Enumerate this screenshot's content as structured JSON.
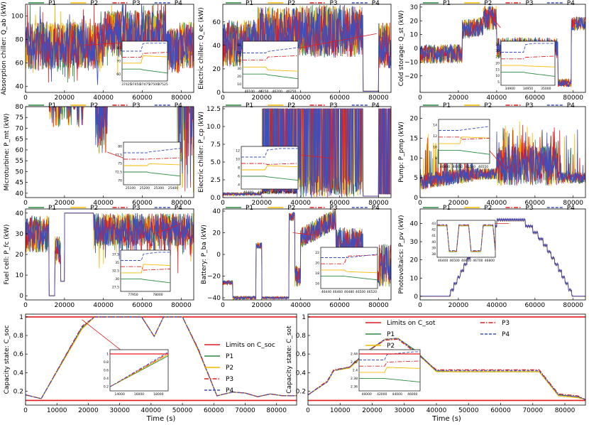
{
  "figure": {
    "colors": {
      "P1": "#2a8a3e",
      "P2": "#f5b800",
      "P3": "#e41a1c",
      "P4": "#3b4fc0",
      "limit": "#e41a1c"
    },
    "legend_labels": [
      "P1",
      "P2",
      "P3",
      "P4"
    ],
    "x_ticks": [
      0,
      20000,
      40000,
      60000,
      80000
    ],
    "x_ticks_wide": [
      0,
      10000,
      20000,
      30000,
      40000,
      50000,
      60000,
      70000,
      80000
    ],
    "xlabel": "Time (s)"
  },
  "chart_data": [
    {
      "id": "qab",
      "type": "line",
      "ylabel": "Absorption chiller: Q_ab (kW)",
      "ylim": [
        35,
        110
      ],
      "yticks": [
        40,
        60,
        80,
        100
      ],
      "series": [
        {
          "name": "P1"
        },
        {
          "name": "P2"
        },
        {
          "name": "P3"
        },
        {
          "name": "P4"
        }
      ],
      "inset": {
        "xticks": [
          "37425",
          "37450",
          "37475",
          "37500",
          "37525"
        ],
        "yticks": [
          60,
          70,
          80
        ]
      }
    },
    {
      "id": "qec",
      "type": "line",
      "ylabel": "Electric chiller: Q_ec (kW)",
      "ylim": [
        0,
        75
      ],
      "yticks": [
        0,
        20,
        40,
        60
      ],
      "series": [
        {
          "name": "P1"
        },
        {
          "name": "P2"
        },
        {
          "name": "P3"
        },
        {
          "name": "P4"
        }
      ],
      "inset": {
        "xticks": [
          "46100",
          "46150",
          "46200",
          "46250"
        ],
        "yticks": [
          10,
          20,
          30,
          40,
          50,
          60
        ]
      }
    },
    {
      "id": "qst",
      "type": "line",
      "ylabel": "Cold storage: Q_st (kW)",
      "ylim": [
        -32,
        32
      ],
      "yticks": [
        -20,
        -10,
        0,
        10,
        20,
        30
      ],
      "series": [
        {
          "name": "P1"
        },
        {
          "name": "P2"
        },
        {
          "name": "P3"
        },
        {
          "name": "P4"
        }
      ],
      "inset": {
        "xticks": [
          "34900",
          "34950",
          "35000"
        ],
        "yticks": [
          5,
          10,
          15,
          20,
          25,
          30,
          35
        ]
      }
    },
    {
      "id": "pmt",
      "type": "line",
      "ylabel": "Microturbine: P_mt (kW)",
      "ylim": [
        38,
        80
      ],
      "yticks": [
        40,
        45,
        50,
        55,
        60,
        65,
        70,
        75,
        80
      ],
      "series": [
        {
          "name": "P1"
        },
        {
          "name": "P2"
        },
        {
          "name": "P3"
        },
        {
          "name": "P4"
        }
      ],
      "inset": {
        "xticks": [
          "25100",
          "25200",
          "25300",
          "25400"
        ],
        "yticks": [
          70.0,
          72.5,
          75.0,
          77.5,
          80.0
        ]
      }
    },
    {
      "id": "pcp",
      "type": "line",
      "ylabel": "Electric chiller: P_cp (kW)",
      "ylim": [
        0,
        12.8
      ],
      "yticks": [
        0.0,
        2.5,
        5.0,
        7.5,
        10.0,
        12.5
      ],
      "series": [
        {
          "name": "P1"
        },
        {
          "name": "P2"
        },
        {
          "name": "P3"
        },
        {
          "name": "P4"
        }
      ],
      "inset": {
        "xticks": [
          "46400",
          "46450",
          "46500",
          "46550"
        ],
        "yticks": [
          4,
          6,
          8,
          10,
          12
        ]
      }
    },
    {
      "id": "ppmp",
      "type": "line",
      "ylabel": "Pump: P_pmp (kW)",
      "ylim": [
        0,
        23
      ],
      "yticks": [
        0,
        5,
        10,
        15,
        20
      ],
      "series": [
        {
          "name": "P1"
        },
        {
          "name": "P2"
        },
        {
          "name": "P3"
        },
        {
          "name": "P4"
        }
      ],
      "inset": {
        "xticks": [
          "46400",
          "46450",
          "46500",
          "46550"
        ],
        "yticks": [
          8,
          10,
          12,
          14
        ]
      }
    },
    {
      "id": "pfc",
      "type": "line",
      "ylabel": "Fuel cell: P_fc (kW)",
      "ylim": [
        -2,
        42
      ],
      "yticks": [
        0,
        10,
        20,
        30,
        40
      ],
      "series": [
        {
          "name": "P1"
        },
        {
          "name": "P2"
        },
        {
          "name": "P3"
        },
        {
          "name": "P4"
        }
      ],
      "inset": {
        "xticks": [
          "77950",
          "78000"
        ],
        "yticks": [
          27.5,
          30.0,
          32.5,
          35.0,
          37.5
        ]
      }
    },
    {
      "id": "pba",
      "type": "line",
      "ylabel": "Battery: P_ba (kW)",
      "ylim": [
        -42,
        42
      ],
      "yticks": [
        -40,
        -20,
        0,
        20,
        40
      ],
      "series": [
        {
          "name": "P1"
        },
        {
          "name": "P2"
        },
        {
          "name": "P3"
        },
        {
          "name": "P4"
        }
      ],
      "inset": {
        "xticks": [
          "46440",
          "46460",
          "46480",
          "46500",
          "46520"
        ],
        "yticks": [
          16,
          18,
          20,
          22
        ]
      }
    },
    {
      "id": "ppv",
      "type": "line",
      "ylabel": "Photovoltaics: P_pv (kW)",
      "ylim": [
        -2,
        48
      ],
      "yticks": [
        0,
        10,
        20,
        30,
        40
      ],
      "series": [
        {
          "name": "P1"
        },
        {
          "name": "P2"
        },
        {
          "name": "P3"
        },
        {
          "name": "P4"
        }
      ],
      "inset": {
        "xticks": [
          "46400",
          "46500",
          "46600",
          "46700",
          "46800"
        ],
        "yticks": [
          38,
          39,
          40,
          41,
          42,
          43
        ]
      }
    },
    {
      "id": "csoc",
      "type": "line",
      "ylabel": "Capacity state: C_soc",
      "ylim": [
        0.05,
        1.03
      ],
      "yticks": [
        0.2,
        0.4,
        0.6,
        0.8,
        1.0
      ],
      "limits": [
        0.1,
        1.0
      ],
      "limit_label": "Limits on C_soc",
      "series": [
        {
          "name": "P1",
          "x": [
            0,
            5000,
            18000,
            22000,
            37000,
            41000,
            44000,
            50000,
            55000,
            61000,
            66000,
            70000,
            74000,
            78000,
            82000,
            86400
          ],
          "values": [
            0.16,
            0.12,
            0.88,
            1.0,
            1.0,
            0.79,
            1.0,
            1.0,
            0.65,
            0.15,
            0.19,
            0.18,
            0.14,
            0.17,
            0.15,
            0.15
          ]
        },
        {
          "name": "P2",
          "x": [
            0,
            5000,
            18000,
            22000,
            37000,
            41000,
            44000,
            50000,
            55000,
            61000,
            66000,
            70000,
            74000,
            78000,
            82000,
            86400
          ],
          "values": [
            0.16,
            0.12,
            0.87,
            1.0,
            1.0,
            0.79,
            1.0,
            1.0,
            0.64,
            0.15,
            0.19,
            0.18,
            0.14,
            0.17,
            0.15,
            0.15
          ]
        },
        {
          "name": "P3",
          "x": [
            0,
            5000,
            18000,
            22000,
            37000,
            41000,
            44000,
            50000,
            55000,
            61000,
            66000,
            70000,
            74000,
            78000,
            82000,
            86400
          ],
          "values": [
            0.16,
            0.12,
            0.9,
            1.0,
            1.0,
            0.79,
            1.0,
            1.0,
            0.66,
            0.15,
            0.19,
            0.18,
            0.14,
            0.17,
            0.15,
            0.15
          ]
        },
        {
          "name": "P4",
          "x": [
            0,
            5000,
            18000,
            22000,
            37000,
            41000,
            44000,
            50000,
            55000,
            61000,
            66000,
            70000,
            74000,
            78000,
            82000,
            86400
          ],
          "values": [
            0.16,
            0.12,
            0.89,
            1.0,
            1.0,
            0.79,
            1.0,
            1.0,
            0.65,
            0.15,
            0.19,
            0.18,
            0.14,
            0.17,
            0.15,
            0.15
          ]
        }
      ],
      "inset": {
        "xticks": [
          "14000",
          "16000",
          "18000"
        ],
        "yticks": [
          0.2,
          0.4,
          0.6,
          0.8,
          1.0
        ]
      }
    },
    {
      "id": "csot",
      "type": "line",
      "ylabel": "Capacity state: C_sot",
      "ylim": [
        0.05,
        1.03
      ],
      "yticks": [
        0.2,
        0.4,
        0.6,
        0.8,
        1.0
      ],
      "limits": [
        0.1,
        1.0
      ],
      "limit_label": "Limits on C_sot",
      "series": [
        {
          "name": "P1",
          "x": [
            0,
            6000,
            8000,
            13000,
            18000,
            24000,
            28000,
            33000,
            40000,
            45000,
            72000,
            78000,
            84000,
            86400
          ],
          "values": [
            0.16,
            0.3,
            0.42,
            0.46,
            0.62,
            0.76,
            0.77,
            0.65,
            0.42,
            0.41,
            0.41,
            0.16,
            0.14,
            0.11
          ]
        },
        {
          "name": "P2",
          "x": [
            0,
            6000,
            8000,
            13000,
            18000,
            24000,
            28000,
            33000,
            40000,
            45000,
            72000,
            78000,
            84000,
            86400
          ],
          "values": [
            0.16,
            0.3,
            0.42,
            0.45,
            0.61,
            0.76,
            0.77,
            0.64,
            0.41,
            0.41,
            0.41,
            0.15,
            0.13,
            0.11
          ]
        },
        {
          "name": "P3",
          "x": [
            0,
            6000,
            8000,
            13000,
            18000,
            24000,
            28000,
            33000,
            40000,
            45000,
            72000,
            78000,
            84000,
            86400
          ],
          "values": [
            0.16,
            0.31,
            0.43,
            0.46,
            0.62,
            0.75,
            0.76,
            0.63,
            0.43,
            0.43,
            0.43,
            0.17,
            0.15,
            0.11
          ]
        },
        {
          "name": "P4",
          "x": [
            0,
            6000,
            8000,
            13000,
            18000,
            24000,
            28000,
            33000,
            40000,
            45000,
            72000,
            78000,
            84000,
            86400
          ],
          "values": [
            0.16,
            0.3,
            0.42,
            0.46,
            0.62,
            0.76,
            0.77,
            0.64,
            0.42,
            0.42,
            0.42,
            0.16,
            0.14,
            0.11
          ]
        }
      ],
      "inset": {
        "xticks": [
          "40000",
          "42000",
          "44000",
          "46000"
        ],
        "yticks": [
          2.36,
          2.38,
          2.4,
          2.42,
          2.44
        ]
      }
    }
  ]
}
